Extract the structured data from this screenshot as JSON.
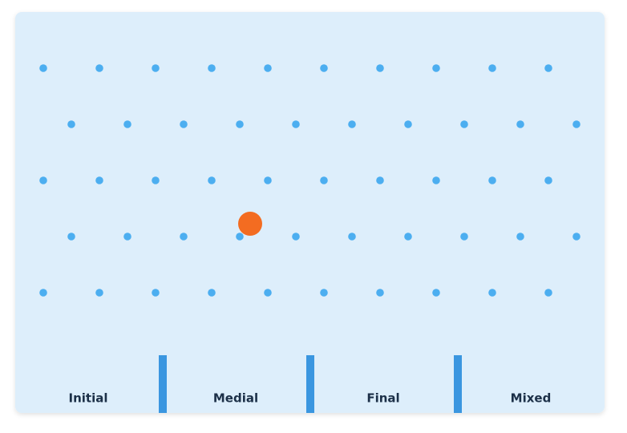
{
  "bins": [
    {
      "label": "Initial"
    },
    {
      "label": "Medial"
    },
    {
      "label": "Final"
    },
    {
      "label": "Mixed"
    }
  ]
}
